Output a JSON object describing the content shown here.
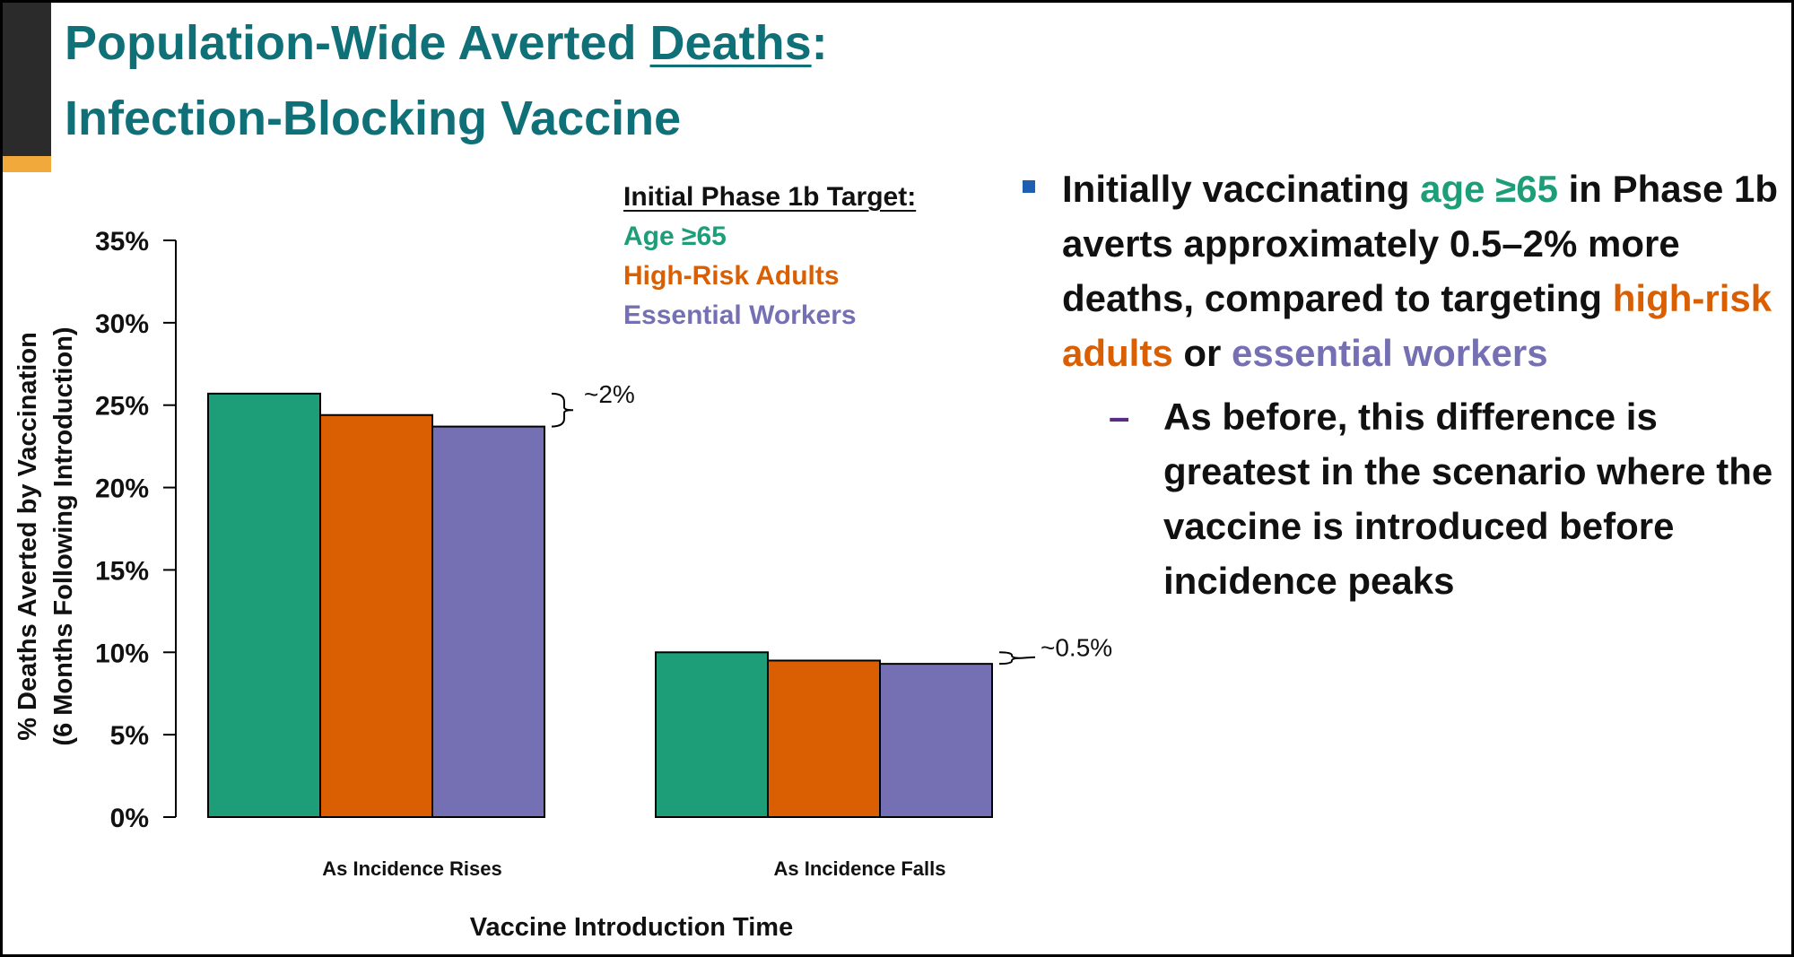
{
  "slide": {
    "title_line1_prefix": "Population-Wide Averted ",
    "title_line1_underlined": "Deaths",
    "title_line1_suffix": ":",
    "title_line2": "Infection-Blocking Vaccine"
  },
  "legend": {
    "title": "Initial Phase 1b Target:",
    "items": [
      "Age ≥65",
      "High-Risk Adults",
      "Essential Workers"
    ]
  },
  "colors": {
    "title": "#0f7078",
    "age65": "#1e9e78",
    "high_risk": "#d95f02",
    "essential": "#7570b3",
    "bullet_marker": "#1f5fb2",
    "dash": "#5b2c86"
  },
  "bullets": {
    "main": {
      "t1": "Initially vaccinating ",
      "t2": "age ≥65",
      "t3": " in Phase 1b averts approximately 0.5–2% more deaths, compared to targeting ",
      "t4": "high-risk adults",
      "t5": " or ",
      "t6": "essential workers"
    },
    "sub": "As before, this difference is greatest in the scenario where the vaccine is introduced before incidence peaks"
  },
  "chart_data": {
    "type": "bar",
    "xlabel": "Vaccine Introduction Time",
    "ylabel_line1": "% Deaths Averted by Vaccination",
    "ylabel_line2": "(6 Months Following Introduction)",
    "ylim": [
      0,
      35
    ],
    "yticks": [
      "0%",
      "5%",
      "10%",
      "15%",
      "20%",
      "25%",
      "30%",
      "35%"
    ],
    "categories": [
      "As Incidence Rises",
      "As Incidence Falls"
    ],
    "series": [
      {
        "name": "Age ≥65",
        "values": [
          25.7,
          10.0
        ]
      },
      {
        "name": "High-Risk Adults",
        "values": [
          24.4,
          9.5
        ]
      },
      {
        "name": "Essential Workers",
        "values": [
          23.7,
          9.3
        ]
      }
    ],
    "annotations": [
      "~2%",
      "~0.5%"
    ],
    "legend_position": "top-right"
  }
}
